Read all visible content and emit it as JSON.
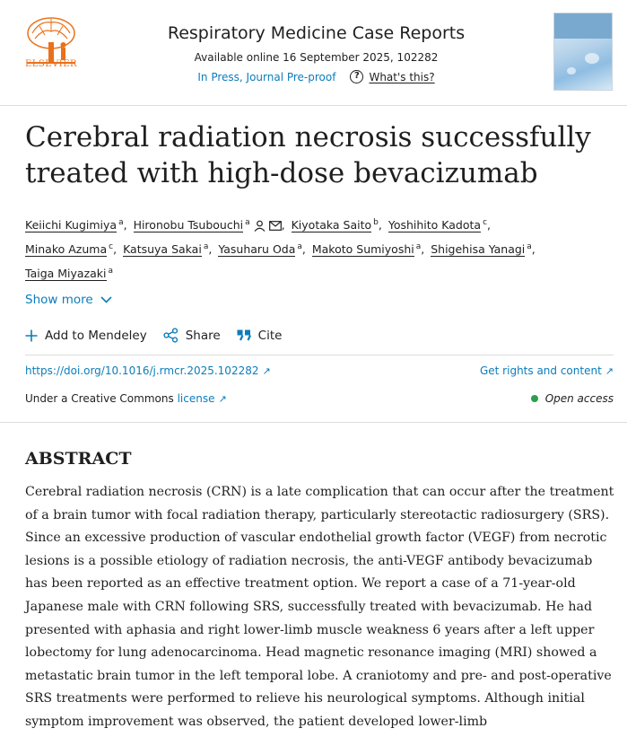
{
  "header": {
    "publisher_logo_text": "ELSEVIER",
    "journal_title": "Respiratory Medicine Case Reports",
    "available_online": "Available online 16 September 2025, 102282",
    "status": "In Press, Journal Pre-proof",
    "whats_this": "What's this?"
  },
  "article": {
    "title": "Cerebral radiation necrosis successfully treated with high-dose bevacizumab",
    "authors": [
      {
        "name": "Keiichi Kugimiya",
        "aff": "a"
      },
      {
        "name": "Hironobu Tsubouchi",
        "aff": "a"
      },
      {
        "name": "Kiyotaka Saito",
        "aff": "b"
      },
      {
        "name": "Yoshihito Kadota",
        "aff": "c"
      },
      {
        "name": "Minako Azuma",
        "aff": "c"
      },
      {
        "name": "Katsuya Sakai",
        "aff": "a"
      },
      {
        "name": "Yasuharu Oda",
        "aff": "a"
      },
      {
        "name": "Makoto Sumiyoshi",
        "aff": "a"
      },
      {
        "name": "Shigehisa Yanagi",
        "aff": "a"
      },
      {
        "name": "Taiga Miyazaki",
        "aff": "a"
      }
    ],
    "show_more": "Show more"
  },
  "actions": {
    "mendeley": "Add to Mendeley",
    "share": "Share",
    "cite": "Cite"
  },
  "links": {
    "doi": "https://doi.org/10.1016/j.rmcr.2025.102282",
    "rights": "Get rights and content",
    "cc_prefix": "Under a Creative Commons",
    "license": "license",
    "open_access": "Open access"
  },
  "abstract": {
    "heading": "ABSTRACT",
    "text": "Cerebral radiation necrosis (CRN) is a late complication that can occur after the treatment of a brain tumor with focal radiation therapy, particularly stereotactic radiosurgery (SRS). Since an excessive production of vascular endothelial growth factor (VEGF) from necrotic lesions is a possible etiology of radiation necrosis, the anti-VEGF antibody bevacizumab has been reported as an effective treatment option. We report a case of a 71-year-old Japanese male with CRN following SRS, successfully treated with bevacizumab. He had presented with aphasia and right lower-limb muscle weakness 6 years after a left upper lobectomy for lung adenocarcinoma. Head magnetic resonance imaging (MRI) showed a metastatic brain tumor in the left temporal lobe. A craniotomy and pre- and post-operative SRS treatments were performed to relieve his neurological symptoms. Although initial symptom improvement was observed, the patient developed lower-limb"
  },
  "colors": {
    "link": "#0c7dbb",
    "publisher_orange": "#e9711c",
    "open_access_green": "#2e9d4f"
  }
}
